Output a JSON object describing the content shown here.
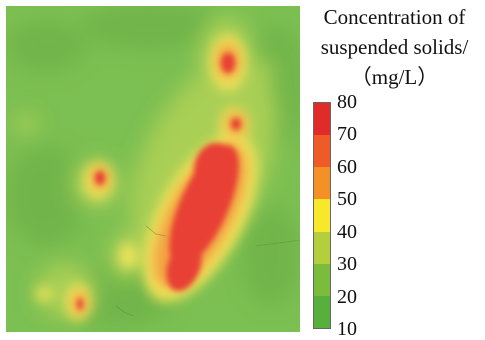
{
  "legend": {
    "title_lines": [
      "Concentration of",
      "suspended solids/",
      "（mg/L）"
    ],
    "ticks": [
      "80",
      "70",
      "60",
      "50",
      "40",
      "30",
      "20",
      "10"
    ],
    "min": 10,
    "max": 80,
    "colors_top_to_bottom": [
      "#e12a2a",
      "#ee5a28",
      "#f39126",
      "#f7e82c",
      "#b3cf3c",
      "#7cbc3c",
      "#58b03c"
    ]
  },
  "map": {
    "background_color": "#7cbf52",
    "palette": {
      "low": "#6fb44a",
      "mid_low": "#a9cf54",
      "mid": "#f1e45a",
      "mid_high": "#f3a343",
      "high": "#e83f34"
    }
  }
}
